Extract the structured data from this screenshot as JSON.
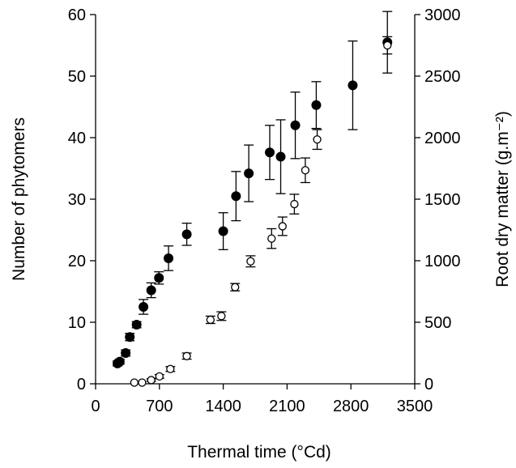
{
  "chart_data": {
    "type": "scatter",
    "xlabel": "Thermal time (°Cd)",
    "ylabel": "Number of phytomers",
    "y2label": "Root dry matter (g.m⁻²)",
    "xlim": [
      0,
      3500
    ],
    "ylim": [
      0,
      60
    ],
    "y2lim": [
      0,
      3000
    ],
    "x_ticks": [
      0,
      700,
      1400,
      2100,
      2800,
      3500
    ],
    "y_ticks": [
      0,
      10,
      20,
      30,
      40,
      50,
      60
    ],
    "y2_ticks": [
      0,
      500,
      1000,
      1500,
      2000,
      2500,
      3000
    ],
    "grid": false,
    "legend": "none",
    "series": [
      {
        "marker": "filled-circle",
        "axis": "left",
        "color": "#000000",
        "points": [
          {
            "x": 240,
            "y": 3.3,
            "err": 0.4
          },
          {
            "x": 265,
            "y": 3.6,
            "err": 0.4
          },
          {
            "x": 330,
            "y": 5.0,
            "err": 0.5
          },
          {
            "x": 375,
            "y": 7.6,
            "err": 0.6
          },
          {
            "x": 450,
            "y": 9.6,
            "err": 0.5
          },
          {
            "x": 525,
            "y": 12.5,
            "err": 1.2
          },
          {
            "x": 610,
            "y": 15.2,
            "err": 1.2
          },
          {
            "x": 695,
            "y": 17.2,
            "err": 1.0
          },
          {
            "x": 800,
            "y": 20.4,
            "err": 2.0
          },
          {
            "x": 1000,
            "y": 24.3,
            "err": 1.8
          },
          {
            "x": 1400,
            "y": 24.8,
            "err": 3.0
          },
          {
            "x": 1540,
            "y": 30.5,
            "err": 4.0
          },
          {
            "x": 1680,
            "y": 34.2,
            "err": 4.6
          },
          {
            "x": 1910,
            "y": 37.6,
            "err": 4.4
          },
          {
            "x": 2030,
            "y": 36.9,
            "err": 6.0
          },
          {
            "x": 2190,
            "y": 42.0,
            "err": 5.4
          },
          {
            "x": 2420,
            "y": 45.3,
            "err": 3.8
          },
          {
            "x": 2820,
            "y": 48.5,
            "err": 7.2
          },
          {
            "x": 3200,
            "y": 55.5,
            "err": 5.0
          }
        ]
      },
      {
        "marker": "open-circle",
        "axis": "right",
        "color": "#000000",
        "points": [
          {
            "x": 425,
            "y": 10,
            "err": 0
          },
          {
            "x": 510,
            "y": 10,
            "err": 0
          },
          {
            "x": 610,
            "y": 30,
            "err": 10
          },
          {
            "x": 700,
            "y": 60,
            "err": 15
          },
          {
            "x": 820,
            "y": 120,
            "err": 20
          },
          {
            "x": 1000,
            "y": 225,
            "err": 25
          },
          {
            "x": 1260,
            "y": 520,
            "err": 30
          },
          {
            "x": 1380,
            "y": 550,
            "err": 35
          },
          {
            "x": 1530,
            "y": 785,
            "err": 30
          },
          {
            "x": 1700,
            "y": 995,
            "err": 45
          },
          {
            "x": 1930,
            "y": 1180,
            "err": 80
          },
          {
            "x": 2050,
            "y": 1280,
            "err": 75
          },
          {
            "x": 2180,
            "y": 1460,
            "err": 80
          },
          {
            "x": 2300,
            "y": 1735,
            "err": 100
          },
          {
            "x": 2430,
            "y": 1985,
            "err": 80
          },
          {
            "x": 3200,
            "y": 2750,
            "err": 70
          }
        ]
      }
    ]
  }
}
